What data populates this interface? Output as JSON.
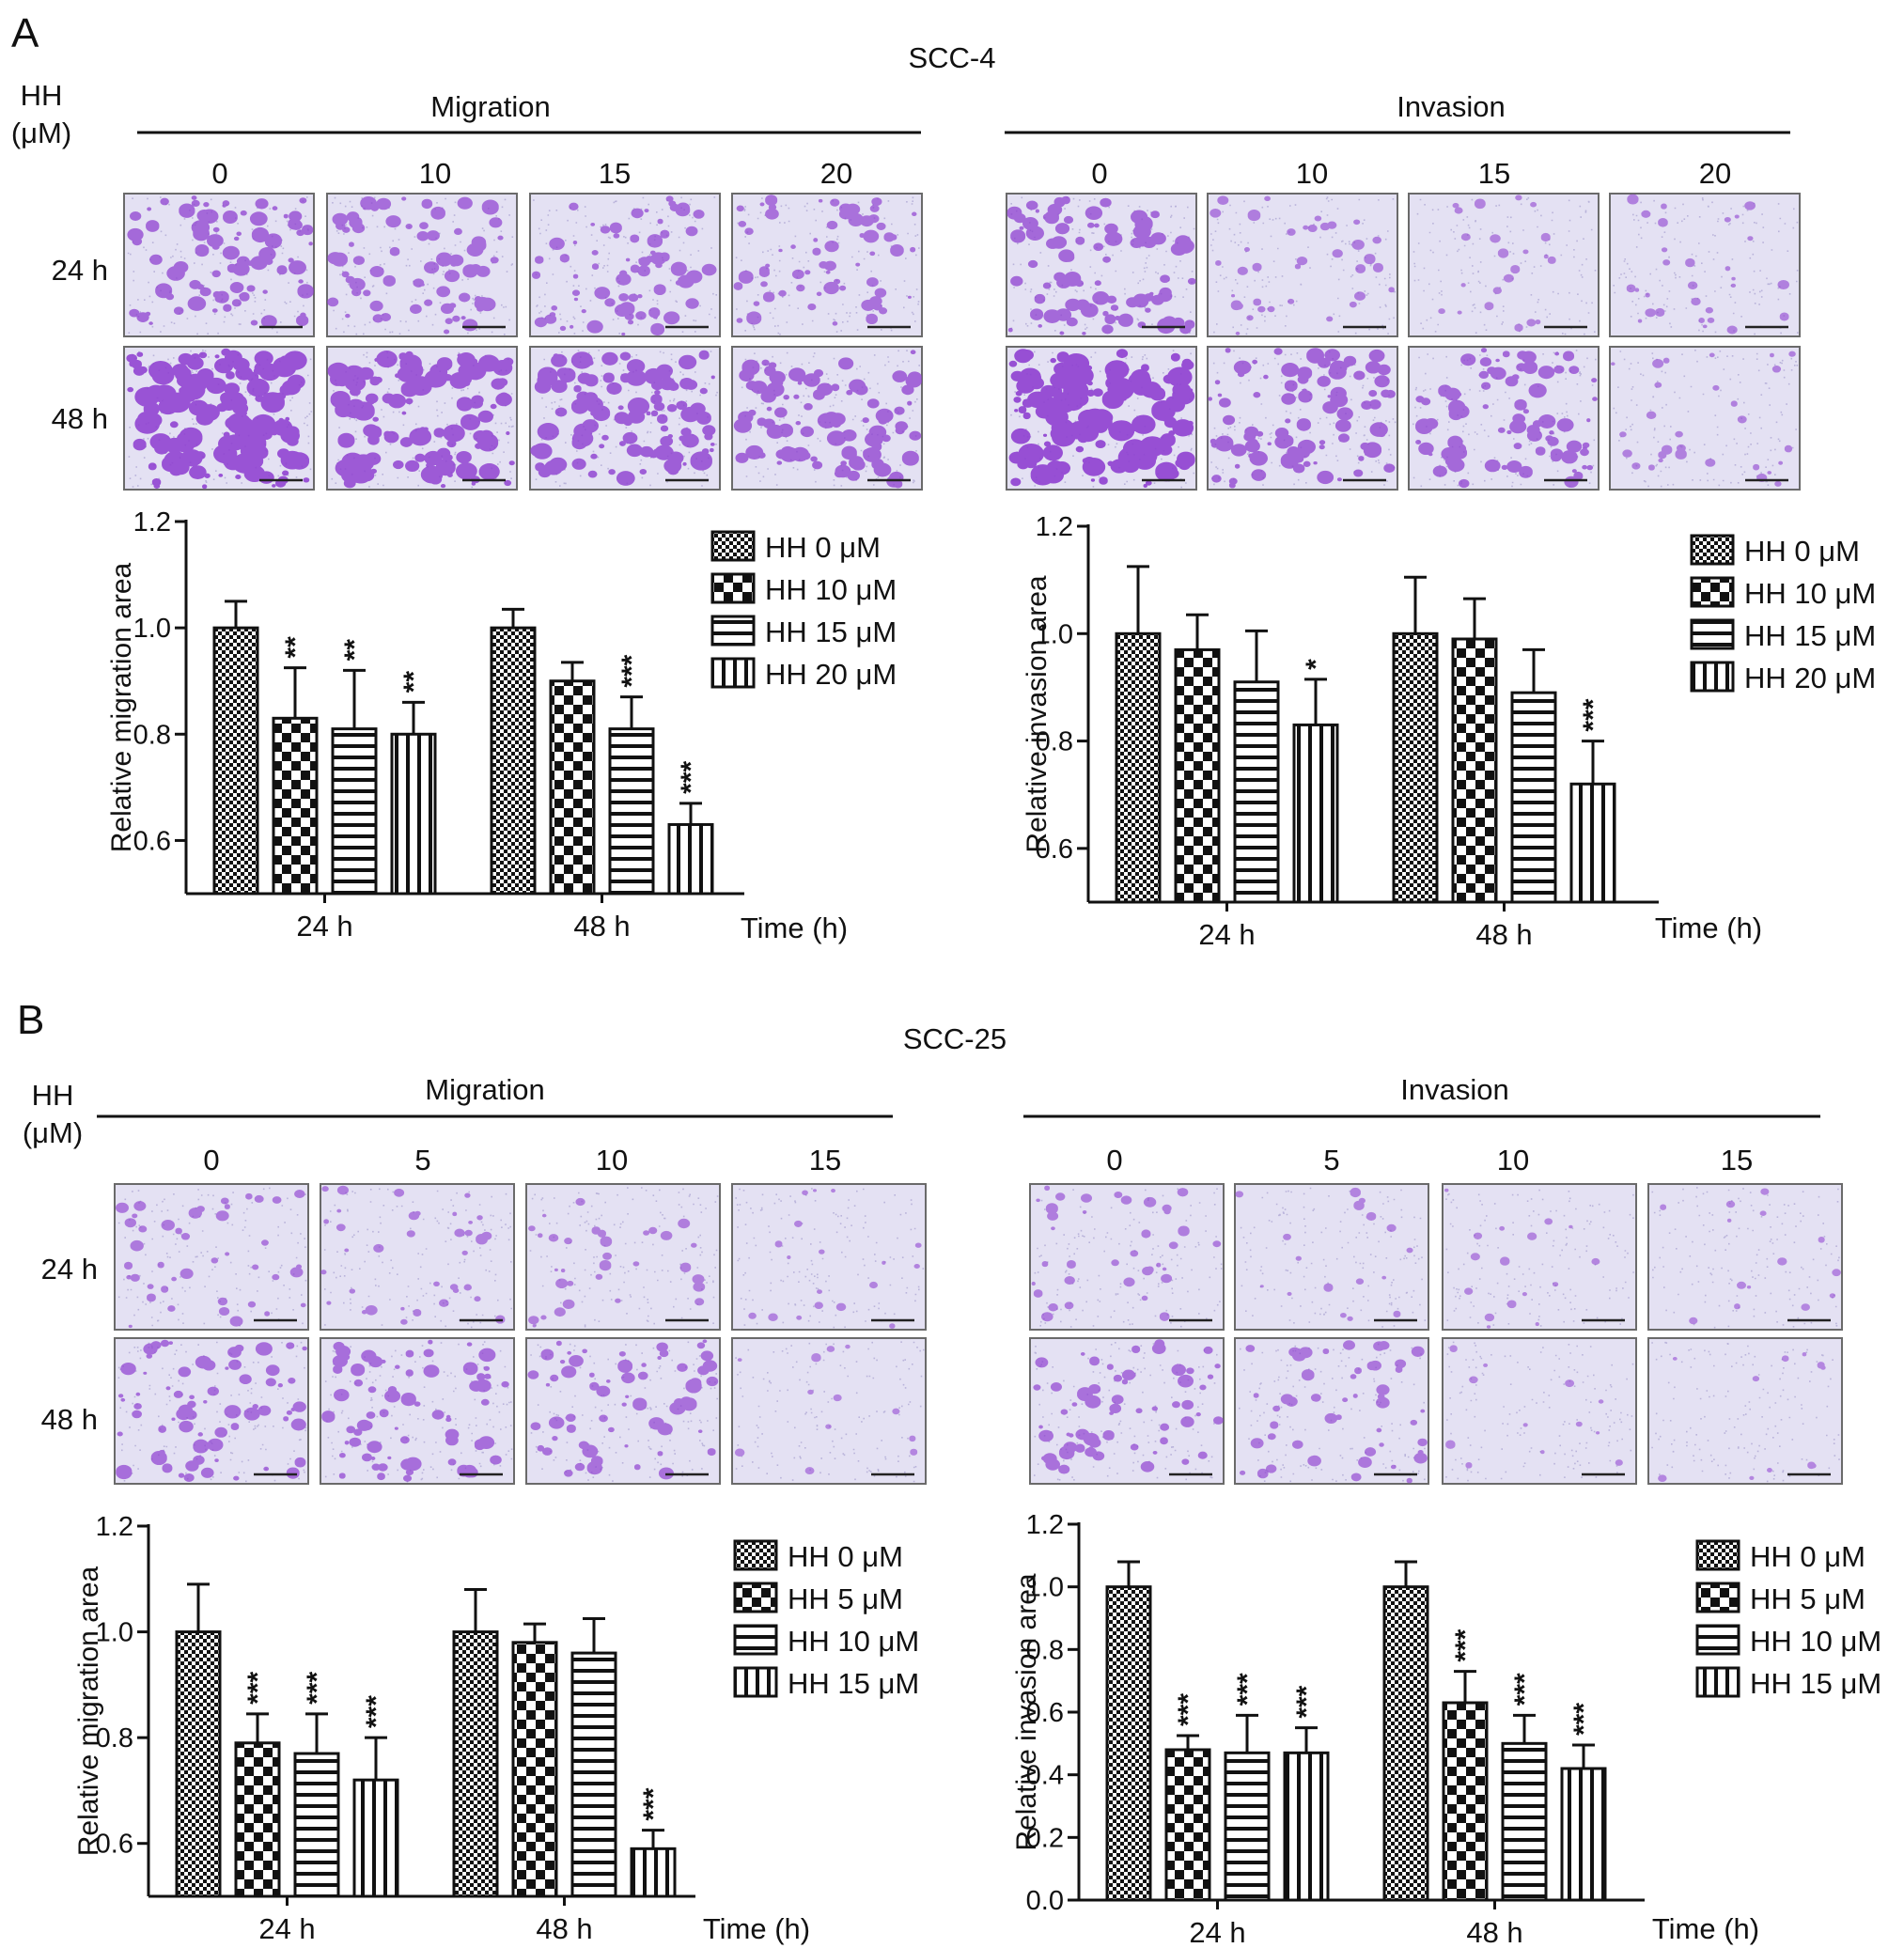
{
  "panels": [
    {
      "letter": "A",
      "cell_line": "SCC-4",
      "hh_label": [
        "HH",
        "(μM)"
      ],
      "groups": [
        {
          "title": "Migration",
          "concentrations": [
            "0",
            "10",
            "15",
            "20"
          ]
        },
        {
          "title": "Invasion",
          "concentrations": [
            "0",
            "10",
            "15",
            "20"
          ]
        }
      ],
      "rows": [
        "24 h",
        "48 h"
      ],
      "micro": {
        "Migration": {
          "24 h": [
            0.55,
            0.45,
            0.45,
            0.4
          ],
          "48 h": [
            0.95,
            0.8,
            0.75,
            0.6
          ]
        },
        "Invasion": {
          "24 h": [
            0.55,
            0.2,
            0.1,
            0.15
          ],
          "48 h": [
            1.0,
            0.6,
            0.55,
            0.15
          ]
        }
      }
    },
    {
      "letter": "B",
      "cell_line": "SCC-25",
      "hh_label": [
        "HH",
        "(μM)"
      ],
      "groups": [
        {
          "title": "Migration",
          "concentrations": [
            "0",
            "5",
            "10",
            "15"
          ]
        },
        {
          "title": "Invasion",
          "concentrations": [
            "0",
            "5",
            "10",
            "15"
          ]
        }
      ],
      "rows": [
        "24 h",
        "48 h"
      ],
      "micro": {
        "Migration": {
          "24 h": [
            0.25,
            0.2,
            0.18,
            0.08
          ],
          "48 h": [
            0.45,
            0.45,
            0.4,
            0.03
          ]
        },
        "Invasion": {
          "24 h": [
            0.2,
            0.08,
            0.06,
            0.04
          ],
          "48 h": [
            0.4,
            0.3,
            0.03,
            0.02
          ]
        }
      }
    }
  ],
  "chart_data": [
    {
      "type": "bar",
      "panel": "A",
      "categories": [
        "24 h",
        "48 h"
      ],
      "xlabel": "Time (h)",
      "ylabel": "Relative migration area",
      "ylim": [
        0.5,
        1.2
      ],
      "yticks": [
        "0.6",
        "0.8",
        "1.0",
        "1.2"
      ],
      "legend_position": "top-right",
      "series": [
        {
          "name": "HH 0 μM",
          "pattern": "fine",
          "values": [
            1.0,
            1.0
          ],
          "errors": [
            0.05,
            0.035
          ],
          "sig": [
            "",
            ""
          ]
        },
        {
          "name": "HH 10 μM",
          "pattern": "checker",
          "values": [
            0.83,
            0.9
          ],
          "errors": [
            0.095,
            0.035
          ],
          "sig": [
            "**",
            ""
          ]
        },
        {
          "name": "HH 15 μM",
          "pattern": "hlines",
          "values": [
            0.81,
            0.81
          ],
          "errors": [
            0.11,
            0.06
          ],
          "sig": [
            "**",
            "***"
          ]
        },
        {
          "name": "HH 20 μM",
          "pattern": "vlines",
          "values": [
            0.8,
            0.63
          ],
          "errors": [
            0.06,
            0.04
          ],
          "sig": [
            "**",
            "***"
          ]
        }
      ]
    },
    {
      "type": "bar",
      "panel": "A",
      "categories": [
        "24 h",
        "48 h"
      ],
      "xlabel": "Time (h)",
      "ylabel": "Relative invasion area",
      "ylim": [
        0.5,
        1.2
      ],
      "yticks": [
        "0.6",
        "0.8",
        "1.0",
        "1.2"
      ],
      "legend_position": "top-right",
      "series": [
        {
          "name": "HH 0 μM",
          "pattern": "fine",
          "values": [
            1.0,
            1.0
          ],
          "errors": [
            0.125,
            0.105
          ],
          "sig": [
            "",
            ""
          ]
        },
        {
          "name": "HH 10 μM",
          "pattern": "checker",
          "values": [
            0.97,
            0.99
          ],
          "errors": [
            0.065,
            0.075
          ],
          "sig": [
            "",
            ""
          ]
        },
        {
          "name": "HH 15 μM",
          "pattern": "hlines",
          "values": [
            0.91,
            0.89
          ],
          "errors": [
            0.095,
            0.08
          ],
          "sig": [
            "",
            ""
          ]
        },
        {
          "name": "HH 20 μM",
          "pattern": "vlines",
          "values": [
            0.83,
            0.72
          ],
          "errors": [
            0.085,
            0.08
          ],
          "sig": [
            "*",
            "***"
          ]
        }
      ]
    },
    {
      "type": "bar",
      "panel": "B",
      "categories": [
        "24 h",
        "48 h"
      ],
      "xlabel": "Time (h)",
      "ylabel": "Relative migration area",
      "ylim": [
        0.5,
        1.2
      ],
      "yticks": [
        "0.6",
        "0.8",
        "1.0",
        "1.2"
      ],
      "legend_position": "top-right",
      "series": [
        {
          "name": "HH 0 μM",
          "pattern": "fine",
          "values": [
            1.0,
            1.0
          ],
          "errors": [
            0.09,
            0.08
          ],
          "sig": [
            "",
            ""
          ]
        },
        {
          "name": "HH 5 μM",
          "pattern": "checker",
          "values": [
            0.79,
            0.98
          ],
          "errors": [
            0.055,
            0.035
          ],
          "sig": [
            "***",
            ""
          ]
        },
        {
          "name": "HH 10 μM",
          "pattern": "hlines",
          "values": [
            0.77,
            0.96
          ],
          "errors": [
            0.075,
            0.065
          ],
          "sig": [
            "***",
            ""
          ]
        },
        {
          "name": "HH 15 μM",
          "pattern": "vlines",
          "values": [
            0.72,
            0.59
          ],
          "errors": [
            0.08,
            0.035
          ],
          "sig": [
            "***",
            "***"
          ]
        }
      ]
    },
    {
      "type": "bar",
      "panel": "B",
      "categories": [
        "24 h",
        "48 h"
      ],
      "xlabel": "Time (h)",
      "ylabel": "Relative invasion area",
      "ylim": [
        0.0,
        1.2
      ],
      "yticks": [
        "0.0",
        "0.2",
        "0.4",
        "0.6",
        "0.8",
        "1.0",
        "1.2"
      ],
      "legend_position": "top-right",
      "series": [
        {
          "name": "HH 0 μM",
          "pattern": "fine",
          "values": [
            1.0,
            1.0
          ],
          "errors": [
            0.08,
            0.08
          ],
          "sig": [
            "",
            ""
          ]
        },
        {
          "name": "HH 5 μM",
          "pattern": "checker",
          "values": [
            0.48,
            0.63
          ],
          "errors": [
            0.045,
            0.1
          ],
          "sig": [
            "***",
            "***"
          ]
        },
        {
          "name": "HH 10 μM",
          "pattern": "hlines",
          "values": [
            0.47,
            0.5
          ],
          "errors": [
            0.12,
            0.09
          ],
          "sig": [
            "***",
            "***"
          ]
        },
        {
          "name": "HH 15 μM",
          "pattern": "vlines",
          "values": [
            0.47,
            0.42
          ],
          "errors": [
            0.08,
            0.075
          ],
          "sig": [
            "***",
            "***"
          ]
        }
      ]
    }
  ]
}
